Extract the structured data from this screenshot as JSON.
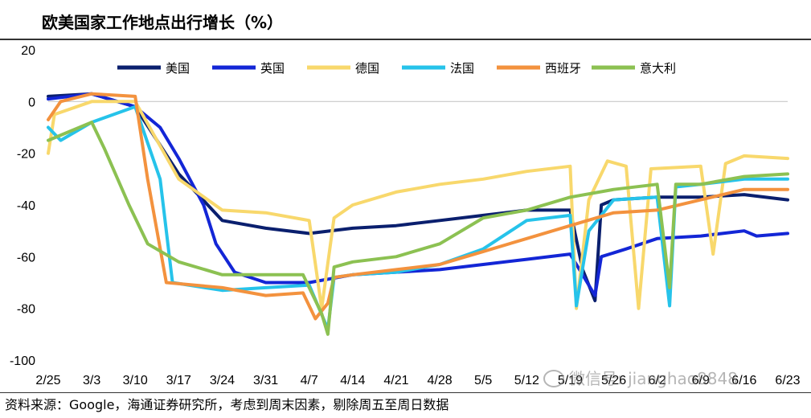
{
  "title": "欧美国家工作地点出行增长（%）",
  "source": "资料来源：Google，海通证券研究所，考虑到周末因素，剔除周五至周日数据",
  "watermark": "微信号: jianghao8848",
  "chart_data": {
    "type": "line",
    "title": "欧美国家工作地点出行增长（%）",
    "xlabel": "",
    "ylabel": "",
    "ylim": [
      -100,
      20
    ],
    "yticks": [
      20,
      0,
      -20,
      -40,
      -60,
      -80,
      -100
    ],
    "x_range": [
      "2/25",
      "6/23"
    ],
    "x_ticks": [
      "2/25",
      "3/3",
      "3/10",
      "3/17",
      "3/24",
      "3/31",
      "4/7",
      "4/14",
      "4/21",
      "4/28",
      "5/5",
      "5/12",
      "5/19",
      "5/26",
      "6/2",
      "6/9",
      "6/16",
      "6/23"
    ],
    "grid": false,
    "zero_line": true,
    "legend_position": "top",
    "series": [
      {
        "name": "美国",
        "color": "#0a1f6e",
        "points": [
          [
            "2/25",
            2
          ],
          [
            "3/3",
            3
          ],
          [
            "3/10",
            -2
          ],
          [
            "3/17",
            -28
          ],
          [
            "3/24",
            -46
          ],
          [
            "3/31",
            -49
          ],
          [
            "4/7",
            -51
          ],
          [
            "4/14",
            -49
          ],
          [
            "4/21",
            -48
          ],
          [
            "4/28",
            -46
          ],
          [
            "5/5",
            -44
          ],
          [
            "5/12",
            -42
          ],
          [
            "5/19",
            -42
          ],
          [
            "5/21",
            -65
          ],
          [
            "5/23",
            -77
          ],
          [
            "5/24",
            -40
          ],
          [
            "5/26",
            -38
          ],
          [
            "6/2",
            -37
          ],
          [
            "6/9",
            -37
          ],
          [
            "6/16",
            -36
          ],
          [
            "6/23",
            -38
          ]
        ]
      },
      {
        "name": "英国",
        "color": "#1326d6",
        "points": [
          [
            "2/25",
            1
          ],
          [
            "3/3",
            3
          ],
          [
            "3/10",
            -2
          ],
          [
            "3/14",
            -10
          ],
          [
            "3/17",
            -22
          ],
          [
            "3/21",
            -40
          ],
          [
            "3/23",
            -55
          ],
          [
            "3/26",
            -66
          ],
          [
            "3/31",
            -70
          ],
          [
            "4/7",
            -70
          ],
          [
            "4/14",
            -67
          ],
          [
            "4/21",
            -66
          ],
          [
            "4/28",
            -65
          ],
          [
            "5/5",
            -63
          ],
          [
            "5/12",
            -61
          ],
          [
            "5/19",
            -59
          ],
          [
            "5/23",
            -75
          ],
          [
            "5/24",
            -60
          ],
          [
            "5/28",
            -57
          ],
          [
            "6/2",
            -53
          ],
          [
            "6/9",
            -52
          ],
          [
            "6/16",
            -50
          ],
          [
            "6/18",
            -52
          ],
          [
            "6/23",
            -51
          ]
        ]
      },
      {
        "name": "德国",
        "color": "#f8d86c",
        "points": [
          [
            "2/25",
            -20
          ],
          [
            "2/26",
            -5
          ],
          [
            "3/3",
            0
          ],
          [
            "3/10",
            0
          ],
          [
            "3/17",
            -30
          ],
          [
            "3/24",
            -42
          ],
          [
            "3/31",
            -43
          ],
          [
            "4/7",
            -46
          ],
          [
            "4/9",
            -80
          ],
          [
            "4/11",
            -45
          ],
          [
            "4/14",
            -40
          ],
          [
            "4/21",
            -35
          ],
          [
            "4/28",
            -32
          ],
          [
            "5/5",
            -30
          ],
          [
            "5/12",
            -27
          ],
          [
            "5/19",
            -25
          ],
          [
            "5/20",
            -80
          ],
          [
            "5/22",
            -38
          ],
          [
            "5/25",
            -23
          ],
          [
            "5/28",
            -25
          ],
          [
            "5/30",
            -80
          ],
          [
            "6/1",
            -26
          ],
          [
            "6/9",
            -25
          ],
          [
            "6/11",
            -59
          ],
          [
            "6/13",
            -24
          ],
          [
            "6/16",
            -21
          ],
          [
            "6/23",
            -22
          ]
        ]
      },
      {
        "name": "法国",
        "color": "#26c3ea",
        "points": [
          [
            "2/25",
            -10
          ],
          [
            "2/27",
            -15
          ],
          [
            "3/3",
            -8
          ],
          [
            "3/10",
            -2
          ],
          [
            "3/14",
            -30
          ],
          [
            "3/16",
            -70
          ],
          [
            "3/24",
            -73
          ],
          [
            "3/31",
            -72
          ],
          [
            "4/7",
            -71
          ],
          [
            "4/10",
            -88
          ],
          [
            "4/11",
            -68
          ],
          [
            "4/14",
            -67
          ],
          [
            "4/21",
            -66
          ],
          [
            "4/28",
            -63
          ],
          [
            "5/5",
            -57
          ],
          [
            "5/12",
            -46
          ],
          [
            "5/19",
            -44
          ],
          [
            "5/20",
            -79
          ],
          [
            "5/22",
            -50
          ],
          [
            "5/26",
            -38
          ],
          [
            "6/2",
            -37
          ],
          [
            "6/4",
            -79
          ],
          [
            "6/5",
            -33
          ],
          [
            "6/9",
            -32
          ],
          [
            "6/16",
            -30
          ],
          [
            "6/23",
            -30
          ]
        ]
      },
      {
        "name": "西班牙",
        "color": "#f3923e",
        "points": [
          [
            "2/25",
            -7
          ],
          [
            "2/27",
            0
          ],
          [
            "3/3",
            3
          ],
          [
            "3/10",
            2
          ],
          [
            "3/12",
            -30
          ],
          [
            "3/15",
            -70
          ],
          [
            "3/24",
            -72
          ],
          [
            "3/31",
            -75
          ],
          [
            "4/6",
            -74
          ],
          [
            "4/8",
            -84
          ],
          [
            "4/10",
            -78
          ],
          [
            "4/11",
            -68
          ],
          [
            "4/14",
            -67
          ],
          [
            "4/21",
            -65
          ],
          [
            "4/28",
            -63
          ],
          [
            "5/5",
            -58
          ],
          [
            "5/12",
            -53
          ],
          [
            "5/19",
            -48
          ],
          [
            "5/26",
            -43
          ],
          [
            "6/2",
            -42
          ],
          [
            "6/9",
            -38
          ],
          [
            "6/16",
            -34
          ],
          [
            "6/23",
            -34
          ]
        ]
      },
      {
        "name": "意大利",
        "color": "#8cc152",
        "points": [
          [
            "2/25",
            -15
          ],
          [
            "3/3",
            -8
          ],
          [
            "3/5",
            -18
          ],
          [
            "3/9",
            -40
          ],
          [
            "3/12",
            -55
          ],
          [
            "3/17",
            -62
          ],
          [
            "3/24",
            -67
          ],
          [
            "3/31",
            -67
          ],
          [
            "4/6",
            -67
          ],
          [
            "4/9",
            -82
          ],
          [
            "4/10",
            -90
          ],
          [
            "4/11",
            -64
          ],
          [
            "4/14",
            -62
          ],
          [
            "4/21",
            -60
          ],
          [
            "4/28",
            -55
          ],
          [
            "5/5",
            -45
          ],
          [
            "5/12",
            -42
          ],
          [
            "5/19",
            -37
          ],
          [
            "5/26",
            -34
          ],
          [
            "6/2",
            -32
          ],
          [
            "6/4",
            -72
          ],
          [
            "6/5",
            -32
          ],
          [
            "6/9",
            -32
          ],
          [
            "6/16",
            -29
          ],
          [
            "6/23",
            -28
          ]
        ]
      }
    ]
  }
}
